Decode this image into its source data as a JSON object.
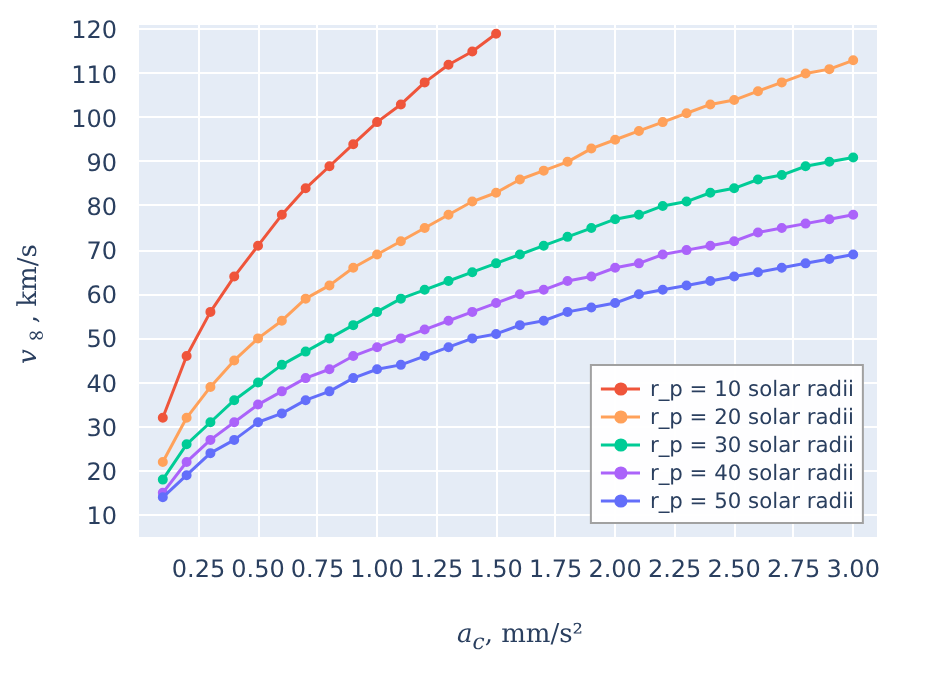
{
  "chart_data": {
    "type": "line",
    "xlabel": "a$_{c}$, mm/s²",
    "ylabel": "v$_{∞}$, km/s",
    "x": [
      0.1,
      0.2,
      0.3,
      0.4,
      0.5,
      0.6,
      0.7,
      0.8,
      0.9,
      1.0,
      1.1,
      1.2,
      1.3,
      1.4,
      1.5,
      1.6,
      1.7,
      1.8,
      1.9,
      2.0,
      2.1,
      2.2,
      2.3,
      2.4,
      2.5,
      2.6,
      2.7,
      2.8,
      2.9,
      3.0
    ],
    "series": [
      {
        "name": "r_p = 10 solar radii",
        "color": "#ef553b",
        "values": [
          32,
          46,
          56,
          64,
          71,
          78,
          84,
          89,
          94,
          99,
          103,
          108,
          112,
          115,
          119,
          null,
          null,
          null,
          null,
          null,
          null,
          null,
          null,
          null,
          null,
          null,
          null,
          null,
          null,
          null
        ]
      },
      {
        "name": "r_p = 20 solar radii",
        "color": "#ffa15a",
        "values": [
          22,
          32,
          39,
          45,
          50,
          54,
          59,
          62,
          66,
          69,
          72,
          75,
          78,
          81,
          83,
          86,
          88,
          90,
          93,
          95,
          97,
          99,
          101,
          103,
          104,
          106,
          108,
          110,
          111,
          113
        ]
      },
      {
        "name": "r_p = 30 solar radii",
        "color": "#00cc96",
        "values": [
          18,
          26,
          31,
          36,
          40,
          44,
          47,
          50,
          53,
          56,
          59,
          61,
          63,
          65,
          67,
          69,
          71,
          73,
          75,
          77,
          78,
          80,
          81,
          83,
          84,
          86,
          87,
          89,
          90,
          91
        ]
      },
      {
        "name": "r_p = 40 solar radii",
        "color": "#ab63fa",
        "values": [
          15,
          22,
          27,
          31,
          35,
          38,
          41,
          43,
          46,
          48,
          50,
          52,
          54,
          56,
          58,
          60,
          61,
          63,
          64,
          66,
          67,
          69,
          70,
          71,
          72,
          74,
          75,
          76,
          77,
          78
        ]
      },
      {
        "name": "r_p = 50 solar radii",
        "color": "#636efa",
        "values": [
          14,
          19,
          24,
          27,
          31,
          33,
          36,
          38,
          41,
          43,
          44,
          46,
          48,
          50,
          51,
          53,
          54,
          56,
          57,
          58,
          60,
          61,
          62,
          63,
          64,
          65,
          66,
          67,
          68,
          69
        ]
      }
    ],
    "xlim": [
      0,
      3.1
    ],
    "ylim": [
      5,
      121
    ],
    "xticks": [
      0.25,
      {
        "value": 0.5,
        "label": "0.50"
      },
      0.75,
      {
        "value": 1,
        "label": "1.00"
      },
      1.25,
      {
        "value": 1.5,
        "label": "1.50"
      },
      1.75,
      {
        "value": 2,
        "label": "2.00"
      },
      2.25,
      {
        "value": 2.5,
        "label": "2.50"
      },
      2.75,
      {
        "value": 3,
        "label": "3.00"
      }
    ],
    "yticks": [
      10,
      20,
      30,
      40,
      50,
      60,
      70,
      80,
      90,
      100,
      110,
      120
    ],
    "grid": true,
    "legend": "bottom right",
    "marker": "circle",
    "line_style": "solid"
  }
}
